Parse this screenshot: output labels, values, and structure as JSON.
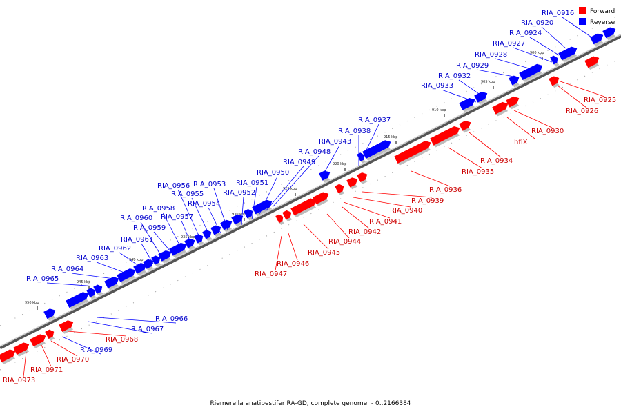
{
  "caption": "Riemerella anatipestifer RA-GD, complete genome. - 0..2166384",
  "legend": {
    "forward_label": "Forward",
    "reverse_label": "Reverse",
    "forward_color": "#ff0000",
    "reverse_color": "#0000ff"
  },
  "tick_labels": [
    "900 kbp",
    "905 kbp",
    "910 kbp",
    "915 kbp",
    "920 kbp",
    "925 kbp",
    "930 kbp",
    "935 kbp",
    "940 kbp",
    "945 kbp",
    "950 kbp"
  ],
  "genes_forward": [
    {
      "id": "RIA_0925"
    },
    {
      "id": "RIA_0926"
    },
    {
      "id": "RIA_0930"
    },
    {
      "id": "hflX"
    },
    {
      "id": "RIA_0934"
    },
    {
      "id": "RIA_0935"
    },
    {
      "id": "RIA_0936"
    },
    {
      "id": "RIA_0939"
    },
    {
      "id": "RIA_0940"
    },
    {
      "id": "RIA_0941"
    },
    {
      "id": "RIA_0942"
    },
    {
      "id": "RIA_0944"
    },
    {
      "id": "RIA_0945"
    },
    {
      "id": "RIA_0946"
    },
    {
      "id": "RIA_0947"
    },
    {
      "id": "RIA_0968"
    },
    {
      "id": "RIA_0970"
    },
    {
      "id": "RIA_0971"
    },
    {
      "id": "RIA_0973"
    }
  ],
  "genes_reverse": [
    {
      "id": "RIA_0916"
    },
    {
      "id": "RIA_0920"
    },
    {
      "id": "RIA_0924"
    },
    {
      "id": "RIA_0927"
    },
    {
      "id": "RIA_0928"
    },
    {
      "id": "RIA_0929"
    },
    {
      "id": "RIA_0932"
    },
    {
      "id": "RIA_0933"
    },
    {
      "id": "RIA_0937"
    },
    {
      "id": "RIA_0938"
    },
    {
      "id": "RIA_0943"
    },
    {
      "id": "RIA_0948"
    },
    {
      "id": "RIA_0949"
    },
    {
      "id": "RIA_0950"
    },
    {
      "id": "RIA_0951"
    },
    {
      "id": "RIA_0952"
    },
    {
      "id": "RIA_0953"
    },
    {
      "id": "RIA_0954"
    },
    {
      "id": "RIA_0955"
    },
    {
      "id": "RIA_0956"
    },
    {
      "id": "RIA_0957"
    },
    {
      "id": "RIA_0958"
    },
    {
      "id": "RIA_0959"
    },
    {
      "id": "RIA_0960"
    },
    {
      "id": "RIA_0961"
    },
    {
      "id": "RIA_0962"
    },
    {
      "id": "RIA_0963"
    },
    {
      "id": "RIA_0964"
    },
    {
      "id": "RIA_0965"
    },
    {
      "id": "RIA_0966"
    },
    {
      "id": "RIA_0967"
    },
    {
      "id": "RIA_0969"
    }
  ]
}
